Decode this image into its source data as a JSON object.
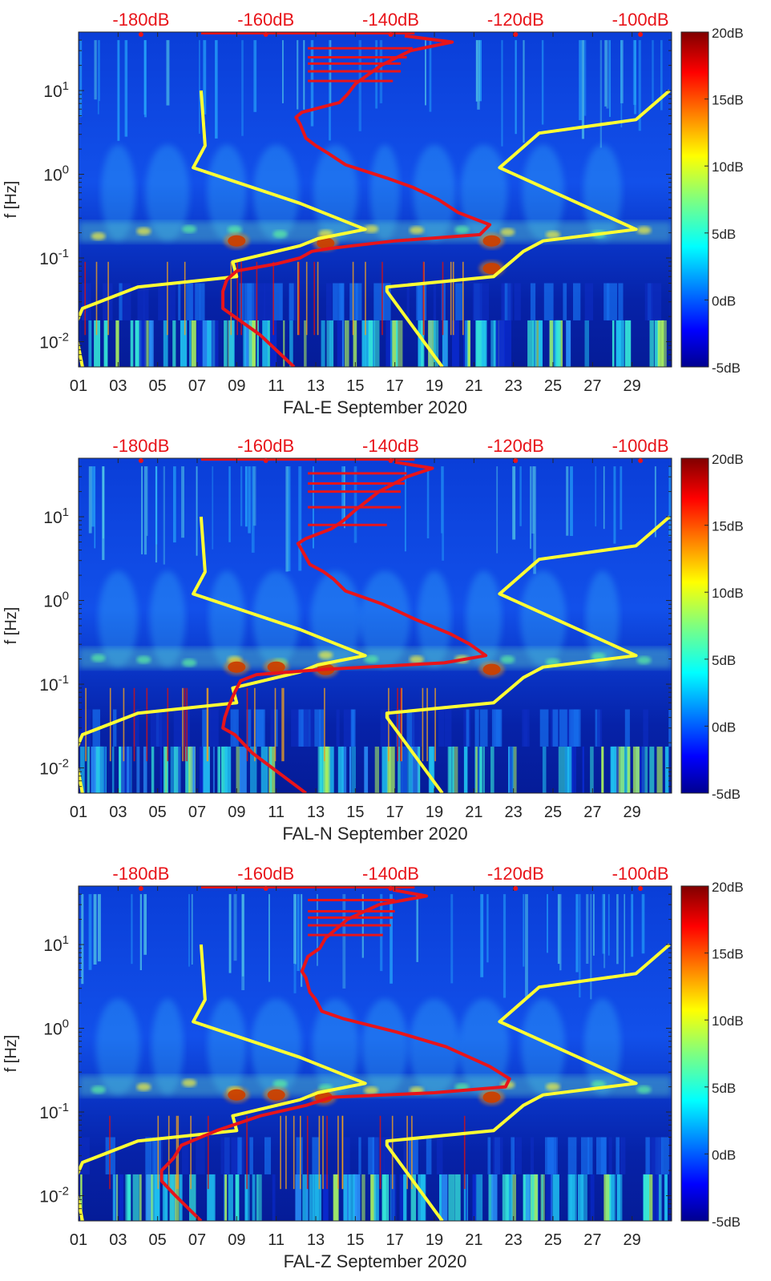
{
  "figure": {
    "colors": {
      "noise_model_lines": "#ffff33",
      "median_psd_line": "#e8141a",
      "top_axis_labels": "#e8141a",
      "tick_color": "#262626"
    },
    "colormap": "jet",
    "top_axis_labels": [
      "-180dB",
      "-160dB",
      "-140dB",
      "-120dB",
      "-100dB"
    ],
    "colorbar": {
      "label_values_db": [
        20,
        15,
        10,
        5,
        0,
        -5
      ],
      "labels": [
        "20dB",
        "15dB",
        "10dB",
        "5dB",
        "0dB",
        "-5dB"
      ],
      "range_db": [
        -5,
        20
      ]
    }
  },
  "chart_data": [
    {
      "type": "heatmap",
      "title": "",
      "xlabel": "FAL-E September 2020",
      "ylabel": "f [Hz]",
      "x_ticks": [
        "01",
        "03",
        "05",
        "07",
        "09",
        "11",
        "13",
        "15",
        "17",
        "19",
        "21",
        "23",
        "25",
        "27",
        "29"
      ],
      "x_range_days": [
        1,
        31
      ],
      "y_scale": "log",
      "y_range_hz": [
        0.005,
        50
      ],
      "y_ticks": [
        {
          "base": "10",
          "exp": "1"
        },
        {
          "base": "10",
          "exp": "0"
        },
        {
          "base": "10",
          "exp": "-1"
        },
        {
          "base": "10",
          "exp": "-2"
        }
      ],
      "top_axis_labels": [
        "-180dB",
        "-160dB",
        "-140dB",
        "-120dB",
        "-100dB"
      ],
      "top_axis_note": "top axis: PSD in dB, from -190dB at left edge to -95dB at right edge",
      "high_noise_model": [
        [
          10,
          7.2
        ],
        [
          2.2,
          7.4
        ],
        [
          1.2,
          6.8
        ],
        [
          0.45,
          12.2
        ],
        [
          0.22,
          15.5
        ],
        [
          0.17,
          13.1
        ],
        [
          0.14,
          12.2
        ],
        [
          0.09,
          8.8
        ],
        [
          0.06,
          9.0
        ],
        [
          0.045,
          4.0
        ],
        [
          0.025,
          1.2
        ],
        [
          0.015,
          0.8
        ],
        [
          0.005,
          1.2
        ]
      ],
      "low_noise_model": [
        [
          10,
          30.9
        ],
        [
          4.5,
          29.2
        ],
        [
          3.1,
          24.3
        ],
        [
          1.2,
          22.3
        ],
        [
          0.22,
          29.2
        ],
        [
          0.16,
          24.5
        ],
        [
          0.12,
          23.5
        ],
        [
          0.06,
          22.0
        ],
        [
          0.045,
          16.6
        ],
        [
          0.04,
          16.6
        ],
        [
          0.005,
          19.4
        ]
      ],
      "median_psd_line": [
        [
          45,
          17.5
        ],
        [
          38,
          19.9
        ],
        [
          30,
          17.8
        ],
        [
          20,
          16.3
        ],
        [
          12,
          15.0
        ],
        [
          9,
          14.6
        ],
        [
          7.2,
          14.2
        ],
        [
          5.5,
          12.3
        ],
        [
          4.8,
          12.0
        ],
        [
          4.0,
          12.2
        ],
        [
          2.7,
          12.5
        ],
        [
          2.2,
          13.0
        ],
        [
          1.8,
          13.6
        ],
        [
          1.3,
          14.5
        ],
        [
          0.9,
          16.6
        ],
        [
          0.7,
          17.9
        ],
        [
          0.5,
          19.2
        ],
        [
          0.35,
          20.2
        ],
        [
          0.25,
          21.8
        ],
        [
          0.19,
          21.3
        ],
        [
          0.16,
          17.0
        ],
        [
          0.13,
          13.7
        ],
        [
          0.12,
          12.8
        ],
        [
          0.1,
          12.2
        ],
        [
          0.085,
          11.0
        ],
        [
          0.07,
          9.0
        ],
        [
          0.055,
          8.5
        ],
        [
          0.04,
          8.3
        ],
        [
          0.025,
          8.3
        ],
        [
          0.012,
          10.2
        ],
        [
          0.005,
          11.9
        ]
      ],
      "median_line_spurs": [
        [
          13,
          16.9
        ],
        [
          17,
          17.3
        ],
        [
          21,
          17.3
        ],
        [
          25,
          17.6
        ],
        [
          32,
          17.9
        ]
      ],
      "hot_spots": [
        [
          0.16,
          9.0
        ],
        [
          0.15,
          13.5
        ],
        [
          0.16,
          21.9
        ],
        [
          0.075,
          21.9
        ]
      ]
    },
    {
      "type": "heatmap",
      "title": "",
      "xlabel": "FAL-N September 2020",
      "ylabel": "f [Hz]",
      "x_ticks": [
        "01",
        "03",
        "05",
        "07",
        "09",
        "11",
        "13",
        "15",
        "17",
        "19",
        "21",
        "23",
        "25",
        "27",
        "29"
      ],
      "x_range_days": [
        1,
        31
      ],
      "y_scale": "log",
      "y_range_hz": [
        0.005,
        50
      ],
      "y_ticks": [
        {
          "base": "10",
          "exp": "1"
        },
        {
          "base": "10",
          "exp": "0"
        },
        {
          "base": "10",
          "exp": "-1"
        },
        {
          "base": "10",
          "exp": "-2"
        }
      ],
      "top_axis_labels": [
        "-180dB",
        "-160dB",
        "-140dB",
        "-120dB",
        "-100dB"
      ],
      "top_axis_note": "top axis: PSD in dB, from -190dB at left edge to -95dB at right edge",
      "high_noise_model": [
        [
          10,
          7.2
        ],
        [
          2.2,
          7.4
        ],
        [
          1.2,
          6.8
        ],
        [
          0.45,
          12.2
        ],
        [
          0.22,
          15.5
        ],
        [
          0.17,
          13.1
        ],
        [
          0.14,
          12.2
        ],
        [
          0.09,
          8.8
        ],
        [
          0.06,
          9.0
        ],
        [
          0.045,
          4.0
        ],
        [
          0.025,
          1.2
        ],
        [
          0.015,
          0.8
        ],
        [
          0.005,
          1.2
        ]
      ],
      "low_noise_model": [
        [
          10,
          30.9
        ],
        [
          4.5,
          29.2
        ],
        [
          3.1,
          24.3
        ],
        [
          1.2,
          22.3
        ],
        [
          0.22,
          29.2
        ],
        [
          0.16,
          24.5
        ],
        [
          0.12,
          23.5
        ],
        [
          0.06,
          22.0
        ],
        [
          0.045,
          16.6
        ],
        [
          0.04,
          16.6
        ],
        [
          0.005,
          19.4
        ]
      ],
      "median_psd_line": [
        [
          45,
          17.0
        ],
        [
          38,
          18.9
        ],
        [
          30,
          17.6
        ],
        [
          20,
          16.2
        ],
        [
          12,
          15.0
        ],
        [
          9,
          14.4
        ],
        [
          7.2,
          13.8
        ],
        [
          5.5,
          12.5
        ],
        [
          4.8,
          12.1
        ],
        [
          4.0,
          12.3
        ],
        [
          2.7,
          12.7
        ],
        [
          2.2,
          13.4
        ],
        [
          1.8,
          13.9
        ],
        [
          1.3,
          14.5
        ],
        [
          0.9,
          16.4
        ],
        [
          0.6,
          18.0
        ],
        [
          0.4,
          19.8
        ],
        [
          0.3,
          20.8
        ],
        [
          0.22,
          21.6
        ],
        [
          0.18,
          19.5
        ],
        [
          0.15,
          13.4
        ],
        [
          0.13,
          10.0
        ],
        [
          0.11,
          9.2
        ],
        [
          0.08,
          8.9
        ],
        [
          0.055,
          8.6
        ],
        [
          0.04,
          8.4
        ],
        [
          0.03,
          8.3
        ],
        [
          0.025,
          8.9
        ],
        [
          0.015,
          9.8
        ],
        [
          0.005,
          12.5
        ]
      ],
      "median_line_spurs": [
        [
          8,
          16.6
        ],
        [
          13,
          17.3
        ],
        [
          20,
          17.3
        ],
        [
          25,
          17.5
        ],
        [
          33,
          17.6
        ]
      ],
      "hot_spots": [
        [
          0.16,
          9.0
        ],
        [
          0.16,
          11.0
        ],
        [
          0.15,
          13.5
        ],
        [
          0.15,
          21.9
        ]
      ]
    },
    {
      "type": "heatmap",
      "title": "",
      "xlabel": "FAL-Z September 2020",
      "ylabel": "f [Hz]",
      "x_ticks": [
        "01",
        "03",
        "05",
        "07",
        "09",
        "11",
        "13",
        "15",
        "17",
        "19",
        "21",
        "23",
        "25",
        "27",
        "29"
      ],
      "x_range_days": [
        1,
        31
      ],
      "y_scale": "log",
      "y_range_hz": [
        0.005,
        50
      ],
      "y_ticks": [
        {
          "base": "10",
          "exp": "1"
        },
        {
          "base": "10",
          "exp": "0"
        },
        {
          "base": "10",
          "exp": "-1"
        },
        {
          "base": "10",
          "exp": "-2"
        }
      ],
      "top_axis_labels": [
        "-180dB",
        "-160dB",
        "-140dB",
        "-120dB",
        "-100dB"
      ],
      "top_axis_note": "top axis: PSD in dB, from -190dB at left edge to -95dB at right edge",
      "high_noise_model": [
        [
          10,
          7.2
        ],
        [
          2.2,
          7.4
        ],
        [
          1.2,
          6.8
        ],
        [
          0.45,
          12.2
        ],
        [
          0.22,
          15.5
        ],
        [
          0.17,
          13.1
        ],
        [
          0.14,
          12.2
        ],
        [
          0.09,
          8.8
        ],
        [
          0.06,
          9.0
        ],
        [
          0.045,
          4.0
        ],
        [
          0.025,
          1.2
        ],
        [
          0.015,
          0.8
        ],
        [
          0.005,
          1.2
        ]
      ],
      "low_noise_model": [
        [
          10,
          30.9
        ],
        [
          4.5,
          29.2
        ],
        [
          3.1,
          24.3
        ],
        [
          1.2,
          22.3
        ],
        [
          0.22,
          29.2
        ],
        [
          0.16,
          24.5
        ],
        [
          0.12,
          23.5
        ],
        [
          0.06,
          22.0
        ],
        [
          0.045,
          16.6
        ],
        [
          0.04,
          16.6
        ],
        [
          0.005,
          19.4
        ]
      ],
      "median_psd_line": [
        [
          45,
          16.9
        ],
        [
          38,
          18.6
        ],
        [
          30,
          16.2
        ],
        [
          20,
          14.6
        ],
        [
          12,
          13.5
        ],
        [
          9,
          13.2
        ],
        [
          7.2,
          12.6
        ],
        [
          5.5,
          12.4
        ],
        [
          4.8,
          12.3
        ],
        [
          4.0,
          12.5
        ],
        [
          2.7,
          12.7
        ],
        [
          2.2,
          13.0
        ],
        [
          1.6,
          13.3
        ],
        [
          1.3,
          14.4
        ],
        [
          0.9,
          17.1
        ],
        [
          0.6,
          19.6
        ],
        [
          0.35,
          21.8
        ],
        [
          0.25,
          22.8
        ],
        [
          0.2,
          22.6
        ],
        [
          0.17,
          19.0
        ],
        [
          0.15,
          13.8
        ],
        [
          0.12,
          12.5
        ],
        [
          0.09,
          10.2
        ],
        [
          0.06,
          8.0
        ],
        [
          0.04,
          6.2
        ],
        [
          0.028,
          5.8
        ],
        [
          0.02,
          5.2
        ],
        [
          0.015,
          5.2
        ],
        [
          0.01,
          5.9
        ],
        [
          0.005,
          7.2
        ]
      ],
      "median_line_spurs": [
        [
          13,
          16.4
        ],
        [
          17,
          16.8
        ],
        [
          21,
          16.9
        ],
        [
          25,
          17.0
        ],
        [
          34,
          17.0
        ]
      ],
      "hot_spots": [
        [
          0.16,
          9.0
        ],
        [
          0.16,
          11.0
        ],
        [
          0.15,
          13.4
        ],
        [
          0.15,
          21.9
        ]
      ]
    }
  ]
}
